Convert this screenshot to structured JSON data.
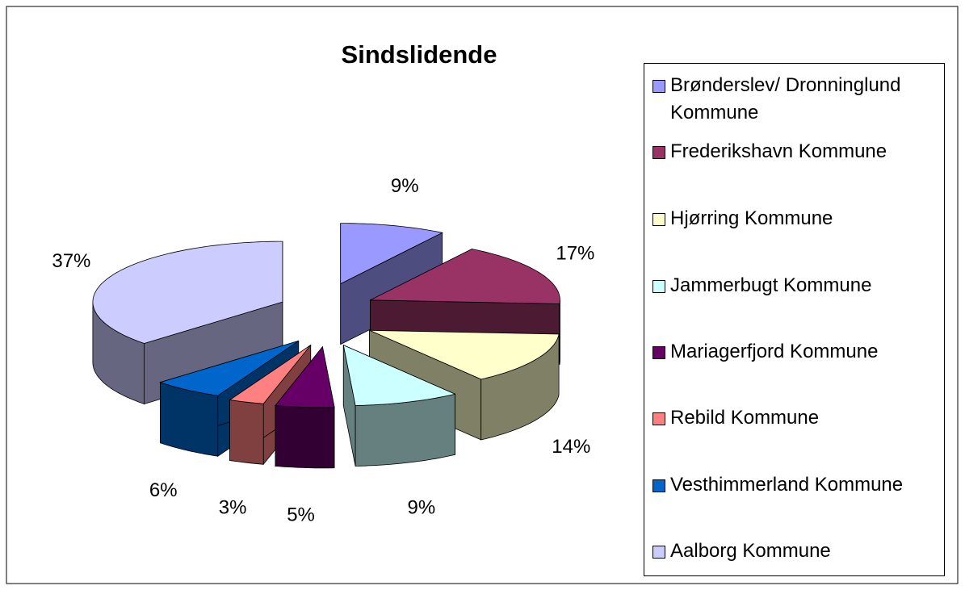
{
  "chart_data": {
    "type": "pie3d",
    "title": "Sindslidende",
    "categories": [
      "Brønderslev/ Dronninglund Kommune",
      "Frederikshavn Kommune",
      "Hjørring Kommune",
      "Jammerbugt Kommune",
      "Mariagerfjord Kommune",
      "Rebild Kommune",
      "Vesthimmerland Kommune",
      "Aalborg Kommune"
    ],
    "values": [
      9,
      17,
      14,
      9,
      5,
      3,
      6,
      37
    ],
    "value_labels": [
      "9%",
      "17%",
      "14%",
      "9%",
      "5%",
      "3%",
      "6%",
      "37%"
    ],
    "colors": [
      "#9999ff",
      "#993366",
      "#ffffcc",
      "#ccffff",
      "#660066",
      "#ff8080",
      "#0066cc",
      "#ccccff"
    ],
    "legend": "right"
  }
}
